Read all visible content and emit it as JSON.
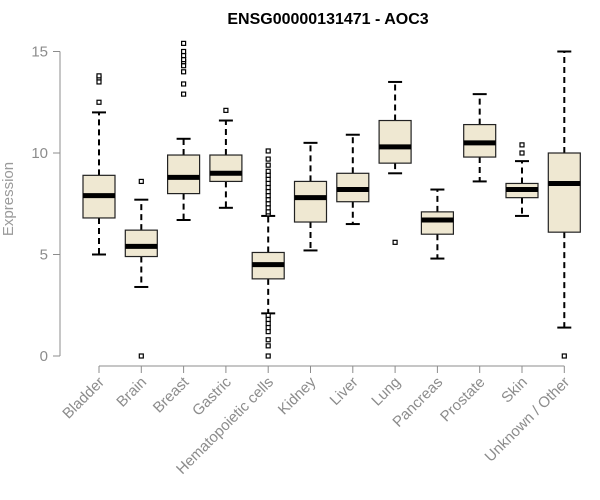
{
  "chart_data": {
    "type": "boxplot",
    "title": "ENSG00000131471 - AOC3",
    "xlabel": "",
    "ylabel": "Expression",
    "ylim": [
      0,
      15.3
    ],
    "yticks": [
      0,
      5,
      10,
      15
    ],
    "colors": {
      "box_fill": "#efe8d2",
      "box_stroke": "#222222",
      "median": "#000000",
      "axis": "#8c8c8c"
    },
    "boxes": [
      {
        "label": "Bladder",
        "whisker_low": 5.0,
        "q1": 6.8,
        "median": 7.9,
        "q3": 8.9,
        "whisker_high": 12.0,
        "outliers": [
          12.5,
          13.5,
          13.7,
          13.8
        ]
      },
      {
        "label": "Brain",
        "whisker_low": 3.4,
        "q1": 4.9,
        "median": 5.4,
        "q3": 6.2,
        "whisker_high": 7.7,
        "outliers": [
          8.6,
          0.0
        ]
      },
      {
        "label": "Breast",
        "whisker_low": 6.7,
        "q1": 8.0,
        "median": 8.8,
        "q3": 9.9,
        "whisker_high": 10.7,
        "outliers": [
          12.9,
          13.4,
          14.0,
          14.3,
          14.5,
          14.6,
          14.8,
          15.0,
          15.4
        ]
      },
      {
        "label": "Gastric",
        "whisker_low": 7.3,
        "q1": 8.6,
        "median": 9.0,
        "q3": 9.9,
        "whisker_high": 11.6,
        "outliers": [
          12.1
        ]
      },
      {
        "label": "Hematopoietic cells",
        "whisker_low": 2.1,
        "q1": 3.8,
        "median": 4.5,
        "q3": 5.1,
        "whisker_high": 6.9,
        "outliers": [
          7.0,
          7.1,
          7.3,
          7.5,
          7.7,
          7.9,
          8.1,
          8.3,
          8.5,
          8.7,
          8.9,
          9.1,
          9.4,
          9.7,
          10.1,
          2.0,
          1.8,
          1.6,
          1.4,
          1.2,
          0.8,
          0.5,
          0.0
        ]
      },
      {
        "label": "Kidney",
        "whisker_low": 5.2,
        "q1": 6.6,
        "median": 7.8,
        "q3": 8.6,
        "whisker_high": 10.5,
        "outliers": []
      },
      {
        "label": "Liver",
        "whisker_low": 6.5,
        "q1": 7.6,
        "median": 8.2,
        "q3": 9.0,
        "whisker_high": 10.9,
        "outliers": []
      },
      {
        "label": "Lung",
        "whisker_low": 9.0,
        "q1": 9.5,
        "median": 10.3,
        "q3": 11.6,
        "whisker_high": 13.5,
        "outliers": [
          5.6
        ]
      },
      {
        "label": "Pancreas",
        "whisker_low": 4.8,
        "q1": 6.0,
        "median": 6.7,
        "q3": 7.1,
        "whisker_high": 8.2,
        "outliers": []
      },
      {
        "label": "Prostate",
        "whisker_low": 8.6,
        "q1": 9.8,
        "median": 10.5,
        "q3": 11.4,
        "whisker_high": 12.9,
        "outliers": []
      },
      {
        "label": "Skin",
        "whisker_low": 6.9,
        "q1": 7.8,
        "median": 8.2,
        "q3": 8.5,
        "whisker_high": 9.6,
        "outliers": [
          10.0,
          10.4
        ]
      },
      {
        "label": "Unknown / Other",
        "whisker_low": 1.4,
        "q1": 6.1,
        "median": 8.5,
        "q3": 10.0,
        "whisker_high": 15.0,
        "outliers": [
          0.0
        ]
      }
    ]
  }
}
